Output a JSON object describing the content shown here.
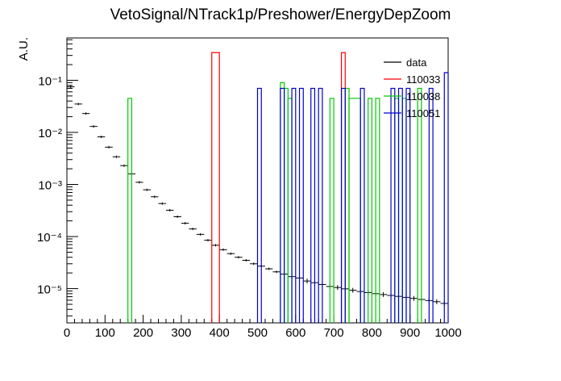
{
  "chart_data": {
    "type": "histogram",
    "title": "VetoSignal/NTrack1p/Preshower/EnergyDepZoom",
    "xlabel": "",
    "ylabel": "A.U.",
    "xlim": [
      0,
      1000
    ],
    "ylim": [
      2.2e-06,
      0.65
    ],
    "yscale": "log",
    "x_ticks": [
      0,
      100,
      200,
      300,
      400,
      500,
      600,
      700,
      800,
      900,
      1000
    ],
    "y_ticks": [
      {
        "value": 1e-05,
        "label": "10⁻⁵"
      },
      {
        "value": 0.0001,
        "label": "10⁻⁴"
      },
      {
        "value": 0.001,
        "label": "10⁻³"
      },
      {
        "value": 0.01,
        "label": "10⁻²"
      },
      {
        "value": 0.1,
        "label": "10⁻¹"
      }
    ],
    "bin_width": 20,
    "legend_position": "top-right",
    "legend": [
      {
        "name": "data",
        "color": "#000000"
      },
      {
        "name": "110033",
        "color": "#ff0000"
      },
      {
        "name": "110038",
        "color": "#00cc00"
      },
      {
        "name": "110051",
        "color": "#0000cc"
      }
    ],
    "series": [
      {
        "name": "data",
        "color": "#000000",
        "style": "errorbar",
        "points": [
          [
            10,
            0.075
          ],
          [
            30,
            0.035
          ],
          [
            50,
            0.023
          ],
          [
            70,
            0.013
          ],
          [
            90,
            0.0082
          ],
          [
            110,
            0.0052
          ],
          [
            130,
            0.0034
          ],
          [
            150,
            0.0023
          ],
          [
            170,
            0.0016
          ],
          [
            190,
            0.0011
          ],
          [
            210,
            0.00079
          ],
          [
            230,
            0.00058
          ],
          [
            250,
            0.00043
          ],
          [
            270,
            0.00032
          ],
          [
            290,
            0.00024
          ],
          [
            310,
            0.00018
          ],
          [
            330,
            0.00014
          ],
          [
            350,
            0.00011
          ],
          [
            370,
            8.5e-05
          ],
          [
            390,
            6.8e-05
          ],
          [
            410,
            5.6e-05
          ],
          [
            430,
            4.7e-05
          ],
          [
            450,
            4e-05
          ],
          [
            470,
            3.5e-05
          ],
          [
            490,
            3e-05
          ],
          [
            510,
            2.7e-05
          ],
          [
            530,
            2.4e-05
          ],
          [
            550,
            2.1e-05
          ],
          [
            570,
            1.9e-05
          ],
          [
            590,
            1.7e-05
          ],
          [
            610,
            1.6e-05
          ],
          [
            630,
            1.4e-05
          ],
          [
            650,
            1.3e-05
          ],
          [
            670,
            1.2e-05
          ],
          [
            690,
            1.1e-05
          ],
          [
            710,
            1.05e-05
          ],
          [
            730,
            9.9e-06
          ],
          [
            750,
            9.3e-06
          ],
          [
            770,
            8.8e-06
          ],
          [
            790,
            8.4e-06
          ],
          [
            810,
            8e-06
          ],
          [
            830,
            7.7e-06
          ],
          [
            850,
            7.4e-06
          ],
          [
            870,
            7.1e-06
          ],
          [
            890,
            6.8e-06
          ],
          [
            910,
            6.5e-06
          ],
          [
            930,
            6.2e-06
          ],
          [
            950,
            5.9e-06
          ],
          [
            970,
            5.6e-06
          ],
          [
            990,
            5.2e-06
          ]
        ]
      },
      {
        "name": "110033",
        "color": "#ff0000",
        "style": "step",
        "bins": [
          [
            380,
            400,
            0.34
          ],
          [
            720,
            730,
            0.34
          ]
        ]
      },
      {
        "name": "110038",
        "color": "#00cc00",
        "style": "step",
        "bins": [
          [
            160,
            170,
            0.045
          ],
          [
            560,
            570,
            0.09
          ],
          [
            570,
            580,
            0.07
          ],
          [
            580,
            590,
            0.045
          ],
          [
            690,
            700,
            0.045
          ],
          [
            730,
            740,
            0.07
          ],
          [
            740,
            770,
            0.045
          ],
          [
            790,
            800,
            0.045
          ],
          [
            810,
            820,
            0.045
          ],
          [
            860,
            870,
            0.045
          ],
          [
            880,
            890,
            0.045
          ],
          [
            920,
            930,
            0.07
          ]
        ]
      },
      {
        "name": "110051",
        "color": "#0000cc",
        "style": "step",
        "bins": [
          [
            500,
            510,
            0.07
          ],
          [
            560,
            570,
            0.07
          ],
          [
            590,
            600,
            0.07
          ],
          [
            610,
            620,
            0.07
          ],
          [
            640,
            650,
            0.07
          ],
          [
            660,
            670,
            0.07
          ],
          [
            720,
            730,
            0.07
          ],
          [
            770,
            780,
            0.07
          ],
          [
            850,
            860,
            0.07
          ],
          [
            870,
            880,
            0.07
          ],
          [
            890,
            900,
            0.07
          ],
          [
            950,
            960,
            0.07
          ],
          [
            990,
            1000,
            0.14
          ]
        ]
      }
    ]
  }
}
